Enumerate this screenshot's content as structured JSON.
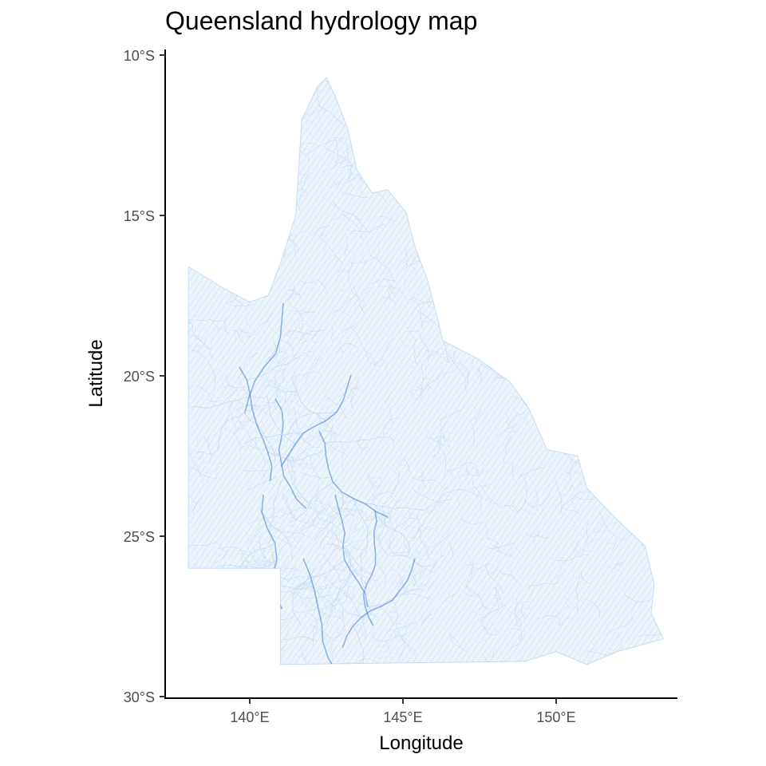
{
  "title": "Queensland hydrology map",
  "axes": {
    "x": {
      "label": "Longitude",
      "ticks": [
        "140°E",
        "145°E",
        "150°E"
      ],
      "tick_values": [
        140,
        145,
        150
      ],
      "range": [
        137.4,
        154.2
      ]
    },
    "y": {
      "label": "Latitude",
      "ticks": [
        "10°S",
        "15°S",
        "20°S",
        "25°S",
        "30°S"
      ],
      "tick_values": [
        -10,
        -15,
        -20,
        -25,
        -30
      ],
      "range": [
        -30,
        -10
      ]
    }
  },
  "style": {
    "river_color_light": "#c6dbf2",
    "river_color_dark": "#3a7bd5",
    "axis_color": "#000000",
    "tick_label_color": "#4d4d4d",
    "background": "#ffffff",
    "grid": false
  },
  "region": {
    "name": "Queensland",
    "outline_lonlat": [
      [
        138.0,
        -16.6
      ],
      [
        139.2,
        -17.3
      ],
      [
        140.0,
        -17.7
      ],
      [
        140.6,
        -17.5
      ],
      [
        141.0,
        -16.5
      ],
      [
        141.5,
        -15.0
      ],
      [
        141.6,
        -13.5
      ],
      [
        141.7,
        -12.0
      ],
      [
        142.2,
        -11.0
      ],
      [
        142.5,
        -10.7
      ],
      [
        142.8,
        -11.3
      ],
      [
        143.2,
        -12.3
      ],
      [
        143.5,
        -13.6
      ],
      [
        144.0,
        -14.3
      ],
      [
        144.5,
        -14.2
      ],
      [
        145.1,
        -14.9
      ],
      [
        145.4,
        -16.0
      ],
      [
        145.8,
        -17.0
      ],
      [
        146.1,
        -18.1
      ],
      [
        146.3,
        -18.9
      ],
      [
        147.5,
        -19.5
      ],
      [
        148.5,
        -20.2
      ],
      [
        149.1,
        -21.0
      ],
      [
        149.7,
        -22.3
      ],
      [
        150.7,
        -22.5
      ],
      [
        151.0,
        -23.5
      ],
      [
        152.0,
        -24.5
      ],
      [
        152.9,
        -25.3
      ],
      [
        153.2,
        -26.5
      ],
      [
        153.1,
        -27.4
      ],
      [
        153.5,
        -28.2
      ],
      [
        152.0,
        -28.6
      ],
      [
        151.0,
        -29.0
      ],
      [
        150.0,
        -28.6
      ],
      [
        149.0,
        -28.9
      ],
      [
        141.0,
        -29.0
      ],
      [
        141.0,
        -26.0
      ],
      [
        138.0,
        -26.0
      ]
    ]
  }
}
